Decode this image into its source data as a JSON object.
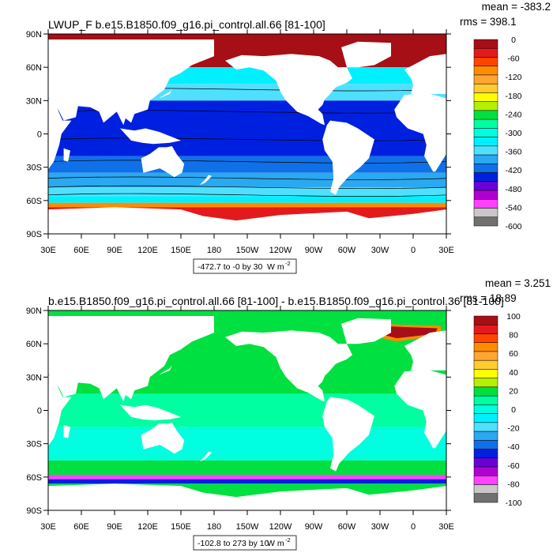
{
  "panels": [
    {
      "title": "LWUP_F b.e15.B1850.f09_g16.pi_control.all.66 [81-100]",
      "mean_label": "mean = -383.2",
      "rms_label": "rms = 398.1",
      "range_label": "-472.7 to -0 by 30",
      "units_label": "W m",
      "units_exp": "-2",
      "lat_labels": [
        "90N",
        "60N",
        "30N",
        "0",
        "30S",
        "60S",
        "90S"
      ],
      "lon_labels": [
        "30E",
        "60E",
        "90E",
        "120E",
        "150E",
        "180",
        "150W",
        "120W",
        "90W",
        "60W",
        "30W",
        "0",
        "30E"
      ],
      "colorbar": {
        "labels": [
          "0",
          "-60",
          "-120",
          "-180",
          "-240",
          "-300",
          "-360",
          "-420",
          "-480",
          "-540",
          "-600"
        ],
        "colors": [
          "#a50f15",
          "#e31a1c",
          "#ff4500",
          "#ff8c00",
          "#ffa630",
          "#ffcc33",
          "#ffff00",
          "#b5f000",
          "#00e040",
          "#00ffa0",
          "#00ffe0",
          "#00f0ff",
          "#50e0ff",
          "#2aa8f0",
          "#1070e8",
          "#0020e0",
          "#6a00d8",
          "#b000d0",
          "#ff40ff",
          "#c8c8c8",
          "#707070"
        ]
      }
    },
    {
      "title": "b.e15.B1850.f09_g16.pi_control.all.66 [81-100] - b.e15.B1850.f09_g16.pi_control.36 [81-100]",
      "mean_label": "mean = 3.251",
      "rms_label": "rms = 18.89",
      "range_label": "-102.8 to 273 by 10",
      "units_label": "W m",
      "units_exp": "-2",
      "lat_labels": [
        "90N",
        "60N",
        "30N",
        "0",
        "30S",
        "60S",
        "90S"
      ],
      "lon_labels": [
        "30E",
        "60E",
        "90E",
        "120E",
        "150E",
        "180",
        "150W",
        "120W",
        "90W",
        "60W",
        "30W",
        "0",
        "30E"
      ],
      "colorbar": {
        "labels": [
          "100",
          "80",
          "60",
          "40",
          "20",
          "0",
          "-20",
          "-40",
          "-60",
          "-80",
          "-100"
        ],
        "colors": [
          "#a50f15",
          "#e31a1c",
          "#ff4500",
          "#ff8c00",
          "#ffa630",
          "#ffcc33",
          "#ffff00",
          "#b5f000",
          "#00e040",
          "#00ffa0",
          "#00ffe0",
          "#00f0ff",
          "#50e0ff",
          "#2aa8f0",
          "#1070e8",
          "#0020e0",
          "#6a00d8",
          "#b000d0",
          "#ff40ff",
          "#c8c8c8",
          "#707070"
        ]
      }
    }
  ],
  "ocean_fields": {
    "panel1_colors": {
      "tropics": "#0020e0",
      "midlat": "#1070e8",
      "subtrop": "#50e0ff",
      "southern": "#2aa8f0",
      "sub_polar": "#00f0ff",
      "arctic": "#a50f15",
      "ant_edge": "#e31a1c",
      "ant_ice": "#ff8c00"
    },
    "panel2_colors": {
      "base": "#00e040",
      "tropics": "#00ffa0",
      "south": "#00ffe0",
      "arctic": "#00e040",
      "north_atl": "#a50f15",
      "north_atl_edge": "#ff8c00",
      "ant_band": "#0020e0",
      "ant_edge": "#ff40ff"
    }
  }
}
